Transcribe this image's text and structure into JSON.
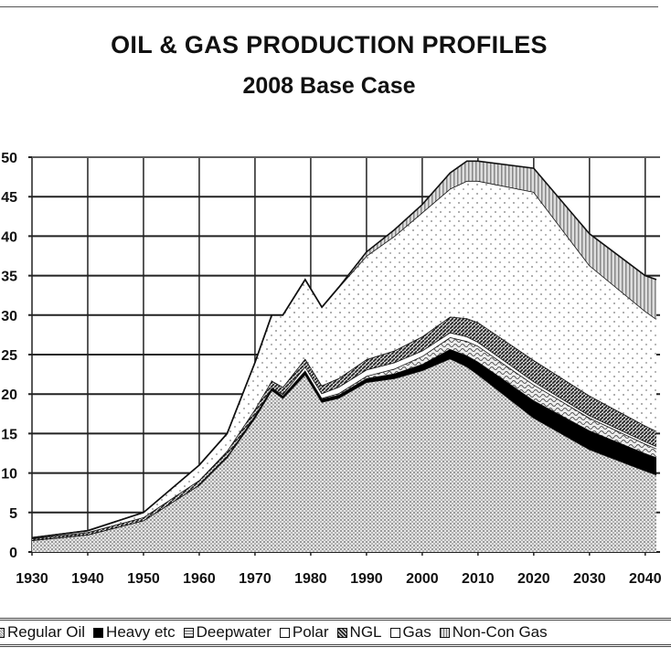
{
  "chart_data": {
    "type": "area",
    "stacked": true,
    "title": "OIL & GAS PRODUCTION PROFILES",
    "subtitle": "2008 Base Case",
    "xlabel": "",
    "ylabel": "",
    "xlim": [
      1930,
      2042
    ],
    "ylim": [
      0,
      50
    ],
    "xticks": [
      "1930",
      "1940",
      "1950",
      "1960",
      "1970",
      "1980",
      "1990",
      "2000",
      "2010",
      "2020",
      "2030",
      "2040"
    ],
    "yticks": [
      "0",
      "5",
      "10",
      "15",
      "20",
      "25",
      "30",
      "35",
      "40",
      "45",
      "50"
    ],
    "grid": true,
    "legend_position": "bottom",
    "x": [
      1930,
      1940,
      1950,
      1960,
      1965,
      1970,
      1973,
      1975,
      1979,
      1982,
      1985,
      1990,
      1995,
      2000,
      2005,
      2008,
      2010,
      2020,
      2030,
      2040,
      2042
    ],
    "series": [
      {
        "name": "Regular Oil",
        "pattern": "dense-dots",
        "values": [
          1.5,
          2.2,
          4,
          8.5,
          12,
          17,
          20.5,
          19.5,
          22.5,
          19,
          19.5,
          21.5,
          22,
          23,
          24.5,
          23.5,
          22.5,
          17,
          13,
          10.3,
          9.8
        ]
      },
      {
        "name": "Heavy etc",
        "pattern": "solid-black",
        "values": [
          0,
          0,
          0,
          0,
          0.1,
          0.3,
          0.3,
          0.3,
          0.4,
          0.4,
          0.4,
          0.5,
          0.6,
          0.8,
          1.2,
          1.4,
          1.6,
          2.2,
          2.4,
          2.2,
          2.2
        ]
      },
      {
        "name": "Deepwater",
        "pattern": "wavy-hatch",
        "values": [
          0,
          0,
          0,
          0,
          0,
          0,
          0,
          0,
          0.1,
          0.1,
          0.2,
          0.3,
          0.6,
          1,
          1.5,
          1.8,
          2,
          2,
          1.6,
          1.2,
          1.1
        ]
      },
      {
        "name": "Polar",
        "pattern": "white",
        "values": [
          0,
          0,
          0,
          0,
          0,
          0,
          0,
          0.2,
          0.5,
          0.6,
          0.8,
          0.8,
          0.8,
          0.7,
          0.6,
          0.6,
          0.5,
          0.4,
          0.3,
          0.3,
          0.3
        ]
      },
      {
        "name": "NGL",
        "pattern": "diagonal-stripes",
        "values": [
          0.2,
          0.3,
          0.4,
          0.6,
          0.7,
          0.8,
          0.9,
          0.9,
          1,
          1,
          1.1,
          1.3,
          1.5,
          1.8,
          2,
          2.3,
          2.5,
          2.7,
          2.5,
          2,
          1.9
        ]
      },
      {
        "name": "Gas",
        "pattern": "sparse-dots",
        "values": [
          0.1,
          0.2,
          0.6,
          1.9,
          2.2,
          5.9,
          8.3,
          9.1,
          10,
          9.9,
          11.5,
          13.1,
          14.5,
          15.7,
          16.2,
          17.4,
          17.9,
          21.3,
          16.5,
          14.5,
          14.2
        ]
      },
      {
        "name": "Non-Con Gas",
        "pattern": "vertical-stripes",
        "values": [
          0,
          0,
          0,
          0,
          0,
          0,
          0,
          0,
          0,
          0,
          0,
          0.5,
          0.8,
          1,
          2,
          2.5,
          2.5,
          3,
          4,
          4.5,
          5
        ]
      }
    ],
    "colors": {
      "line": "#111111",
      "grid": "#222222",
      "heavy": "#000000"
    }
  }
}
